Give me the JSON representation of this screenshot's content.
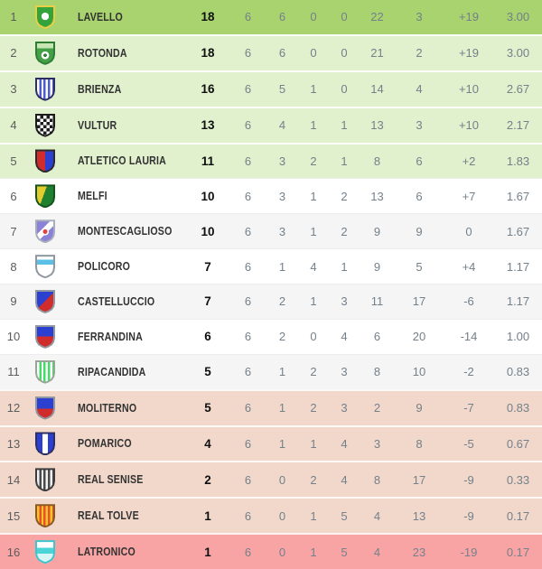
{
  "table_name": "league-standings",
  "colors": {
    "zones": {
      "leader": "#a8d36e",
      "playoff": "#e1f0cd",
      "neutral_even": "#ffffff",
      "neutral_odd": "#f5f5f5",
      "playout": "#f2d8cb",
      "relegation": "#f9a4a4"
    },
    "text": {
      "position": "#5c5c5c",
      "team": "#333333",
      "points": "#0f0f0f",
      "stats": "#74808a"
    }
  },
  "standings": {
    "rows": [
      {
        "pos": "1",
        "team": "LAVELLO",
        "pts": "18",
        "played": "6",
        "won": "6",
        "drawn": "0",
        "lost": "0",
        "gf": "22",
        "ga": "3",
        "diff": "+19",
        "avg": "3.00",
        "zone": "leader",
        "crest": {
          "name": "lavello-crest-icon",
          "border": "#e8cf45",
          "bg": "radial-gradient(circle at 50% 46%, #ffffff 0 4px, #35a33c 4.2px)"
        }
      },
      {
        "pos": "2",
        "team": "ROTONDA",
        "pts": "18",
        "played": "6",
        "won": "6",
        "drawn": "0",
        "lost": "0",
        "gf": "21",
        "ga": "2",
        "diff": "+19",
        "avg": "3.00",
        "zone": "playoff",
        "crest": {
          "name": "rotonda-crest-icon",
          "border": "#2e7d32",
          "bg": "radial-gradient(circle at 50% 60%, #2e7d32 0 1.8px, #ffffff 2px 4.2px, rgba(0,0,0,0) 4.4px), linear-gradient(180deg, #c8e6b4 0 26%, #43a047 26%)"
        }
      },
      {
        "pos": "3",
        "team": "BRIENZA",
        "pts": "16",
        "played": "6",
        "won": "5",
        "drawn": "1",
        "lost": "0",
        "gf": "14",
        "ga": "4",
        "diff": "+10",
        "avg": "2.67",
        "zone": "playoff",
        "crest": {
          "name": "brienza-crest-icon",
          "border": "#2d2f63",
          "bg": "repeating-linear-gradient(90deg, #ffffff 0 2.4px, #4d5ccc 2.4px 4.8px)"
        }
      },
      {
        "pos": "4",
        "team": "VULTUR",
        "pts": "13",
        "played": "6",
        "won": "4",
        "drawn": "1",
        "lost": "1",
        "gf": "13",
        "ga": "3",
        "diff": "+10",
        "avg": "2.17",
        "zone": "playoff",
        "crest": {
          "name": "vultur-crest-icon",
          "border": "#1c1c1c",
          "bg": "repeating-conic-gradient(#1c1c1c 0 25%, #ffffff 0 50%) 0 0 / 7px 7px"
        }
      },
      {
        "pos": "5",
        "team": "ATLETICO LAURIA",
        "pts": "11",
        "played": "6",
        "won": "3",
        "drawn": "2",
        "lost": "1",
        "gf": "8",
        "ga": "6",
        "diff": "+2",
        "avg": "1.83",
        "zone": "playoff",
        "crest": {
          "name": "atletico-lauria-crest-icon",
          "border": "#2b2b2b",
          "bg": "linear-gradient(90deg, #d02c2c 0 50%, #2b3fd0 50%)"
        }
      },
      {
        "pos": "6",
        "team": "MELFI",
        "pts": "10",
        "played": "6",
        "won": "3",
        "drawn": "1",
        "lost": "2",
        "gf": "13",
        "ga": "6",
        "diff": "+7",
        "avg": "1.67",
        "zone": "neutral_even",
        "crest": {
          "name": "melfi-crest-icon",
          "border": "#14531d",
          "bg": "linear-gradient(110deg, #e2cc2e 0 42%, #1f8030 42%)"
        }
      },
      {
        "pos": "7",
        "team": "MONTESCAGLIOSO",
        "pts": "10",
        "played": "6",
        "won": "3",
        "drawn": "1",
        "lost": "2",
        "gf": "9",
        "ga": "9",
        "diff": "0",
        "avg": "1.67",
        "zone": "neutral_odd",
        "crest": {
          "name": "montescaglioso-crest-icon",
          "border": "#a8aebc",
          "bg": "radial-gradient(circle at 50% 52%, #e04343 0 2.4px, #ffffff 2.6px 4px, rgba(0,0,0,0) 4.2px), linear-gradient(135deg, #8b82d8 0 36%, #ffffff 36% 58%, #8b82d8 58%)"
        }
      },
      {
        "pos": "8",
        "team": "POLICORO",
        "pts": "7",
        "played": "6",
        "won": "1",
        "drawn": "4",
        "lost": "1",
        "gf": "9",
        "ga": "5",
        "diff": "+4",
        "avg": "1.17",
        "zone": "neutral_even",
        "crest": {
          "name": "policoro-crest-icon",
          "border": "#9097a0",
          "bg": "linear-gradient(180deg, #ffffff 0 16%, #5bc0e8 16% 40%, #ffffff 40%)"
        }
      },
      {
        "pos": "9",
        "team": "CASTELLUCCIO",
        "pts": "7",
        "played": "6",
        "won": "2",
        "drawn": "1",
        "lost": "3",
        "gf": "11",
        "ga": "17",
        "diff": "-6",
        "avg": "1.17",
        "zone": "neutral_odd",
        "crest": {
          "name": "castelluccio-crest-icon",
          "border": "#9097a0",
          "bg": "linear-gradient(135deg, #2b3fd0 0 48%, #d02c2c 48%)"
        }
      },
      {
        "pos": "10",
        "team": "FERRANDINA",
        "pts": "6",
        "played": "6",
        "won": "2",
        "drawn": "0",
        "lost": "4",
        "gf": "6",
        "ga": "20",
        "diff": "-14",
        "avg": "1.00",
        "zone": "neutral_even",
        "crest": {
          "name": "ferrandina-crest-icon",
          "border": "#9097a0",
          "bg": "linear-gradient(180deg, #2b3fd0 0 48%, #d02c2c 48%)"
        }
      },
      {
        "pos": "11",
        "team": "RIPACANDIDA",
        "pts": "5",
        "played": "6",
        "won": "1",
        "drawn": "2",
        "lost": "3",
        "gf": "8",
        "ga": "10",
        "diff": "-2",
        "avg": "0.83",
        "zone": "neutral_odd",
        "crest": {
          "name": "ripacandida-crest-icon",
          "border": "#9aa59a",
          "bg": "repeating-linear-gradient(90deg, #ffffff 0 2.4px, #43dc64 2.4px 4.8px)"
        }
      },
      {
        "pos": "12",
        "team": "MOLITERNO",
        "pts": "5",
        "played": "6",
        "won": "1",
        "drawn": "2",
        "lost": "3",
        "gf": "2",
        "ga": "9",
        "diff": "-7",
        "avg": "0.83",
        "zone": "playout",
        "crest": {
          "name": "moliterno-crest-icon",
          "border": "#9097a0",
          "bg": "linear-gradient(180deg, #2b3fd0 0 52%, #d02c2c 52%)"
        }
      },
      {
        "pos": "13",
        "team": "POMARICO",
        "pts": "4",
        "played": "6",
        "won": "1",
        "drawn": "1",
        "lost": "4",
        "gf": "3",
        "ga": "8",
        "diff": "-5",
        "avg": "0.67",
        "zone": "playout",
        "crest": {
          "name": "pomarico-crest-icon",
          "border": "#2d2f63",
          "bg": "linear-gradient(90deg, #2b3fd0 0 34%, #ffffff 34% 66%, #2b3fd0 66%)"
        }
      },
      {
        "pos": "14",
        "team": "REAL SENISE",
        "pts": "2",
        "played": "6",
        "won": "0",
        "drawn": "2",
        "lost": "4",
        "gf": "8",
        "ga": "17",
        "diff": "-9",
        "avg": "0.33",
        "zone": "playout",
        "crest": {
          "name": "real-senise-crest-icon",
          "border": "#3c3c3c",
          "bg": "repeating-linear-gradient(90deg, #f2f2f2 0 2.4px, #4a4a4a 2.4px 4.8px)"
        }
      },
      {
        "pos": "15",
        "team": "REAL TOLVE",
        "pts": "1",
        "played": "6",
        "won": "0",
        "drawn": "1",
        "lost": "5",
        "gf": "4",
        "ga": "13",
        "diff": "-9",
        "avg": "0.17",
        "zone": "playout",
        "crest": {
          "name": "real-tolve-crest-icon",
          "border": "#8a5a22",
          "bg": "repeating-linear-gradient(90deg, #f6c724 0 2.4px, #e8502e 2.4px 4.8px)"
        }
      },
      {
        "pos": "16",
        "team": "LATRONICO",
        "pts": "1",
        "played": "6",
        "won": "0",
        "drawn": "1",
        "lost": "5",
        "gf": "4",
        "ga": "23",
        "diff": "-19",
        "avg": "0.17",
        "zone": "relegation",
        "crest": {
          "name": "latronico-crest-icon",
          "border": "#3ec6ce",
          "bg": "linear-gradient(180deg, #ffffff 0 30%, #4ad4d8 30% 58%, #d8f6f6 58%)"
        }
      }
    ]
  }
}
